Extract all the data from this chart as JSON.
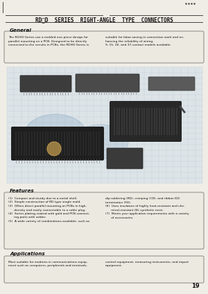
{
  "bg_color": "#f0ede6",
  "page_bg": "#f0ede6",
  "title": "RD※D  SERIES  RIGHT-ANGLE  TYPE  CONNECTORS",
  "title_fontsize": 5.8,
  "section_general_title": "General",
  "general_text_left": "The RD※D Series use a molded one-piece design for\nparallel mounting on a PCB. Designed to be directly\nconnected to the circuits in PCBs, the RD※D Series is",
  "general_text_right": "suitable for labor-saving in connection work and en-\nhancing the reliability of wiring.\n9, 15, 26, and 37-contact models available.",
  "features_title": "Features",
  "features_left": "(1)  Compact and sturdy due to a metal shell.\n(2)  Simple construction of RD type single mold.\n(3)  Offers direct parallel mounting on PCBs in high-\n      density and easily connectable to a cable plug.\n(4)  Series plating-coated with gold and PCB-connect-\n      ing parts with solder.\n(5)  A wide variety of combinations available, such as",
  "features_right": "dip soldering (RD), crimping (CD), and ribbon IDC\ntermination (FD).\n(6)  Uses insulators of highly heat-resistant and che-\n      mical-resistant GIL synthetic resin.\n(7)  Meets your application requirements with a variety\n      of accessories.",
  "applications_title": "Applications",
  "applications_text_left": "Most suitable for modems in communications equip-\nment such as computers, peripherals and terminals,",
  "applications_text_right": "control equipment, measuring instruments, and import\nequipment.",
  "page_number": "19",
  "font_color": "#111111",
  "box_edge_color": "#777777",
  "line_color": "#444444",
  "grid_color": "#b8c4cc",
  "connector_dark": "#2a2a2a",
  "connector_mid": "#555555",
  "connector_light": "#888888"
}
